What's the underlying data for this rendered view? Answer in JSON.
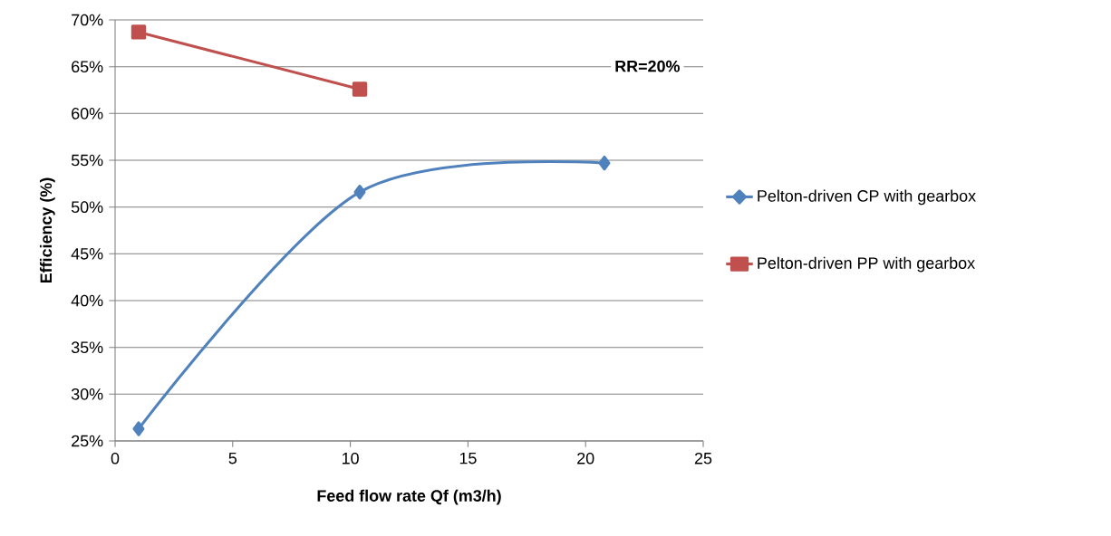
{
  "chart_data": {
    "type": "line",
    "xlabel": "Feed flow rate Qf (m3/h)",
    "ylabel": "Efficiency (%)",
    "annotations": [
      "RR=20%"
    ],
    "series": [
      {
        "name": "Pelton-driven CP with gearbox",
        "color": "#4f81bd",
        "marker": "diamond",
        "x": [
          1,
          10.4,
          20.8
        ],
        "values": [
          26.3,
          51.6,
          54.7
        ]
      },
      {
        "name": "Pelton-driven PP with gearbox",
        "color": "#c0504d",
        "marker": "square",
        "x": [
          1,
          10.4
        ],
        "values": [
          68.7,
          62.6
        ]
      }
    ],
    "xlim": [
      0,
      25
    ],
    "xticks": [
      0,
      5,
      10,
      15,
      20,
      25
    ],
    "ylim": [
      25,
      70
    ],
    "yticks": [
      {
        "value": 25,
        "label": "25%"
      },
      {
        "value": 30,
        "label": "30%"
      },
      {
        "value": 35,
        "label": "35%"
      },
      {
        "value": 40,
        "label": "40%"
      },
      {
        "value": 45,
        "label": "45%"
      },
      {
        "value": 50,
        "label": "50%"
      },
      {
        "value": 55,
        "label": "55%"
      },
      {
        "value": 60,
        "label": "60%"
      },
      {
        "value": 65,
        "label": "65%"
      },
      {
        "value": 70,
        "label": "70%"
      }
    ],
    "grid": "y",
    "legend": "right",
    "line_style": "solid"
  }
}
